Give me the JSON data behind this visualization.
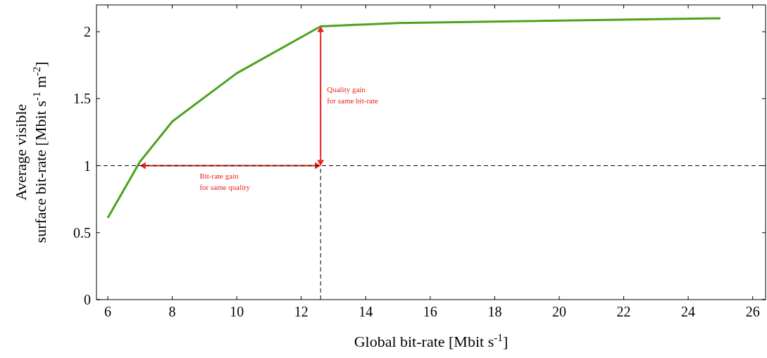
{
  "chart_data": {
    "type": "line",
    "xlabel": "Global bit-rate [Mbit s$^{-1}$]",
    "ylabel": "Average visible\nsurface bit-rate [Mbit s$^{-1}$ m$^{-2}$]",
    "xlim": [
      5.65,
      26.4
    ],
    "ylim": [
      0,
      2.2
    ],
    "xticks": [
      6,
      8,
      10,
      12,
      14,
      16,
      18,
      20,
      22,
      24,
      26
    ],
    "yticks": [
      0,
      {
        "value": 0.5,
        "label": "0.5"
      },
      1,
      {
        "value": 1.5,
        "label": "1.5"
      },
      2
    ],
    "grid": false,
    "marker": "none",
    "line_style": "solid",
    "series": [
      {
        "color": "#4aa31f",
        "x": [
          6,
          7,
          8,
          10,
          12.6,
          15,
          25
        ],
        "values": [
          0.61,
          1.03,
          1.33,
          1.69,
          2.04,
          2.065,
          2.1
        ]
      },
      {
        "color": "#000000",
        "line_style": "dashed",
        "x": [
          12.6,
          12.6
        ],
        "values": [
          0,
          1
        ]
      }
    ],
    "ref_lines": [
      {
        "axis": "y",
        "value": 1,
        "color": "#000000",
        "line_style": "dashed"
      }
    ],
    "annotations": [
      "Bit-rate gain\nfor same quality",
      "Quality gain\nfor same bit-rate"
    ]
  }
}
